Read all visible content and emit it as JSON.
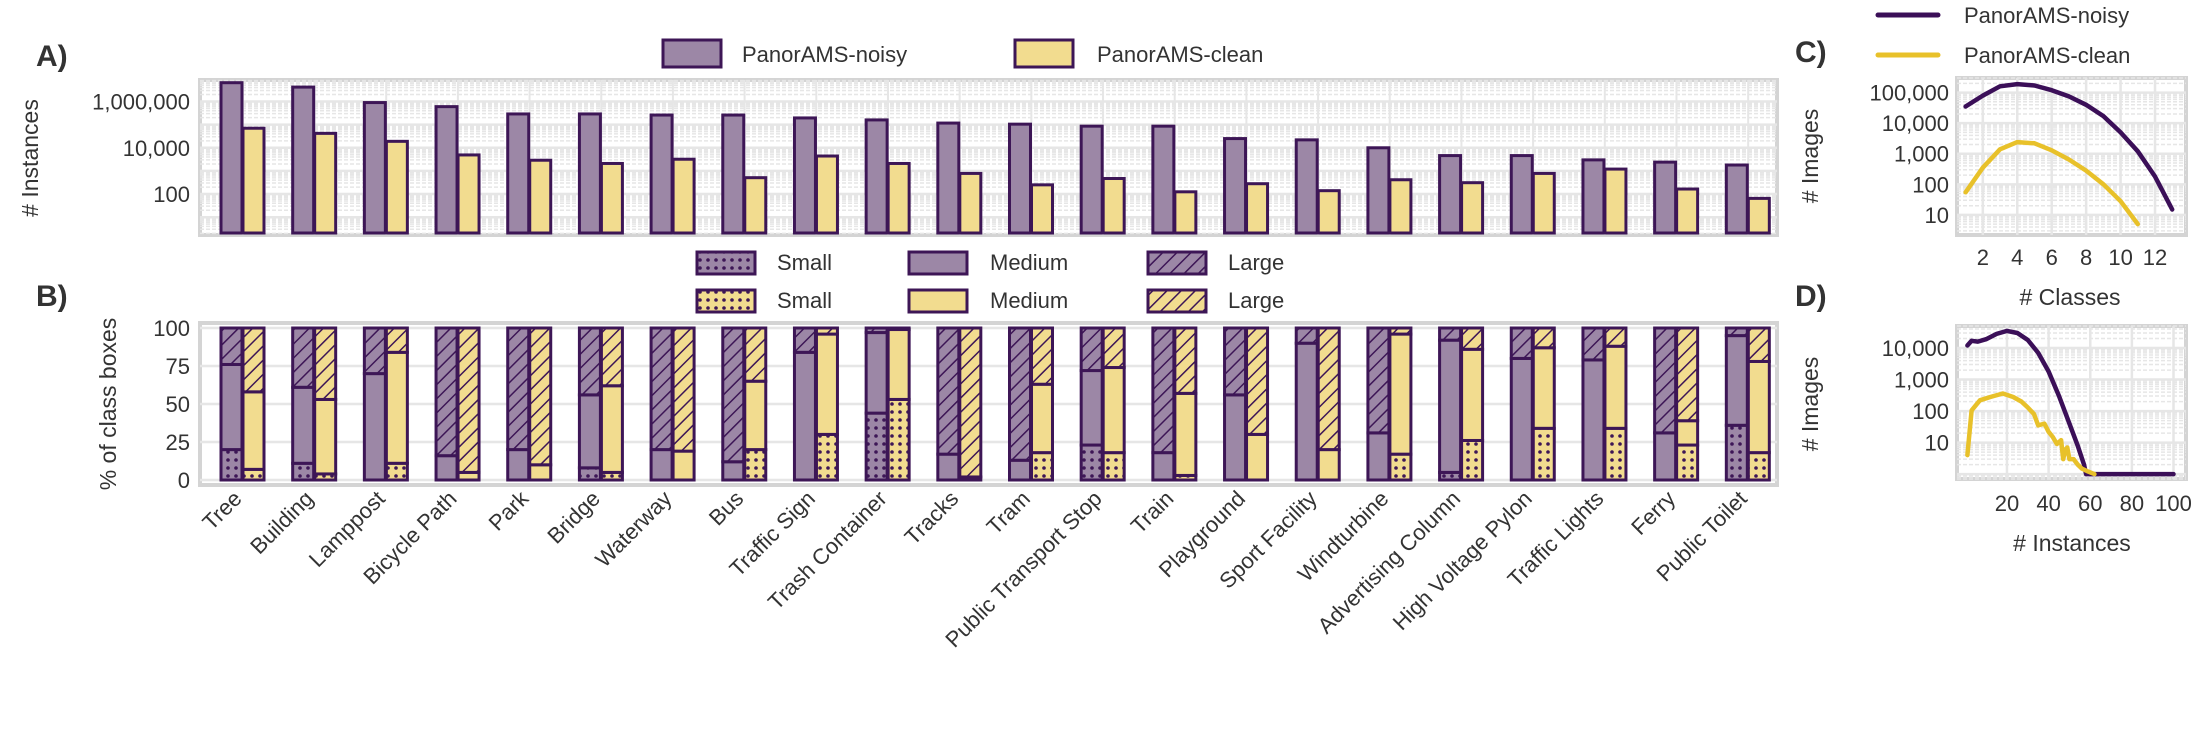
{
  "colors": {
    "noisy_fill": "#9c87a6",
    "noisy_edge": "#3d1656",
    "clean_fill": "#f2dc8f",
    "noisy_line": "#3b0f58",
    "clean_line": "#e8c12a",
    "grid": "#e6e6e6",
    "frame": "#d4d4d4"
  },
  "chart_data": [
    {
      "panel": "A)",
      "type": "bar",
      "ylabel": "# Instances",
      "yscale": "log",
      "yticks": [
        {
          "v": 100,
          "label": "100"
        },
        {
          "v": 10000,
          "label": "10,000"
        },
        {
          "v": 1000000,
          "label": "1,000,000"
        }
      ],
      "ylim": [
        1.7,
        8500000
      ],
      "grid": true,
      "legend_position": "top",
      "categories": [
        "Tree",
        "Building",
        "Lamppost",
        "Bicycle Path",
        "Park",
        "Bridge",
        "Waterway",
        "Bus",
        "Traffic Sign",
        "Trash Container",
        "Tracks",
        "Tram",
        "Public Transport Stop",
        "Train",
        "Playground",
        "Sport Facility",
        "Windturbine",
        "Advertising Column",
        "High Voltage Pylon",
        "Traffic Lights",
        "Ferry",
        "Public Toilet"
      ],
      "series": [
        {
          "name": "PanorAMS-noisy",
          "values": [
            6500000,
            4200000,
            900000,
            600000,
            290000,
            290000,
            260000,
            260000,
            195000,
            160000,
            117000,
            105000,
            86000,
            86000,
            25000,
            22000,
            10000,
            4600,
            4600,
            3000,
            2400,
            1800
          ]
        },
        {
          "name": "PanorAMS-clean",
          "values": [
            70000,
            42000,
            19000,
            4900,
            2900,
            2100,
            3200,
            510,
            4400,
            2100,
            780,
            250,
            470,
            125,
            280,
            140,
            415,
            310,
            780,
            1200,
            165,
            65
          ]
        }
      ]
    },
    {
      "panel": "B)",
      "type": "bar",
      "stacked": true,
      "ylabel": "% of class boxes",
      "ylim": [
        0,
        100
      ],
      "yticks": [
        0,
        25,
        50,
        75,
        100
      ],
      "grid": true,
      "legend": [
        "Small",
        "Medium",
        "Large",
        "Small",
        "Medium",
        "Large"
      ],
      "series": [
        {
          "dataset": "PanorAMS-noisy",
          "small": [
            20,
            11,
            0,
            0,
            0,
            8,
            0,
            0,
            0,
            44,
            0,
            0,
            23,
            0,
            0,
            0,
            0,
            5,
            0,
            0,
            0,
            36
          ],
          "medium": [
            56,
            50,
            70,
            16,
            20,
            48,
            20,
            12,
            84,
            53,
            17,
            13,
            49,
            18,
            56,
            90,
            31,
            87,
            80,
            79,
            31,
            59
          ],
          "large": [
            24,
            39,
            30,
            84,
            80,
            44,
            80,
            88,
            16,
            3,
            83,
            87,
            28,
            82,
            44,
            10,
            69,
            8,
            20,
            21,
            69,
            5
          ]
        },
        {
          "dataset": "PanorAMS-clean",
          "small": [
            7,
            4,
            11,
            0,
            0,
            5,
            0,
            20,
            30,
            53,
            0,
            18,
            18,
            3,
            0,
            0,
            17,
            26,
            34,
            34,
            23,
            18
          ],
          "medium": [
            51,
            49,
            73,
            5,
            10,
            57,
            19,
            45,
            66,
            46,
            2,
            45,
            56,
            54,
            30,
            20,
            79,
            60,
            53,
            54,
            16,
            60
          ],
          "large": [
            42,
            47,
            16,
            95,
            90,
            38,
            81,
            35,
            4,
            1,
            98,
            37,
            26,
            43,
            70,
            80,
            4,
            14,
            13,
            12,
            61,
            22
          ]
        }
      ]
    },
    {
      "panel": "C)",
      "type": "line",
      "xlabel": "# Classes",
      "ylabel": "# Images",
      "yscale": "log",
      "xticks": [
        2,
        4,
        6,
        8,
        10,
        12
      ],
      "yticks": [
        {
          "v": 10,
          "label": "10"
        },
        {
          "v": 100,
          "label": "100"
        },
        {
          "v": 1000,
          "label": "1,000"
        },
        {
          "v": 10000,
          "label": "10,000"
        },
        {
          "v": 100000,
          "label": "100,000"
        }
      ],
      "xlim": [
        0.5,
        13.8
      ],
      "ylim": [
        2.2,
        300000
      ],
      "legend_position": "top",
      "series": [
        {
          "name": "PanorAMS-noisy",
          "x": [
            1,
            2,
            3,
            4,
            5,
            6,
            7,
            8,
            9,
            10,
            11,
            12,
            13
          ],
          "y": [
            35000,
            80000,
            160000,
            190000,
            170000,
            120000,
            75000,
            40000,
            17000,
            5000,
            1200,
            180,
            15
          ]
        },
        {
          "name": "PanorAMS-clean",
          "x": [
            1,
            2,
            3,
            4,
            5,
            6,
            7,
            8,
            9,
            10,
            11
          ],
          "y": [
            55,
            350,
            1400,
            2400,
            2200,
            1300,
            650,
            280,
            100,
            28,
            5
          ]
        }
      ]
    },
    {
      "panel": "D)",
      "type": "line",
      "xlabel": "# Instances",
      "ylabel": "# Images",
      "yscale": "log",
      "xticks": [
        20,
        40,
        60,
        80,
        100
      ],
      "yticks": [
        {
          "v": 10,
          "label": "10"
        },
        {
          "v": 100,
          "label": "100"
        },
        {
          "v": 1000,
          "label": "1,000"
        },
        {
          "v": 10000,
          "label": "10,000"
        }
      ],
      "xlim": [
        -4,
        106
      ],
      "ylim": [
        0.7,
        50000
      ],
      "series": [
        {
          "name": "PanorAMS-noisy",
          "x": [
            1,
            3,
            6,
            10,
            15,
            20,
            25,
            30,
            35,
            40,
            45,
            50,
            54,
            57,
            58,
            100
          ],
          "y": [
            12000,
            17000,
            16000,
            19000,
            28000,
            35000,
            30000,
            18000,
            7000,
            1800,
            300,
            40,
            8,
            2,
            1,
            1
          ]
        },
        {
          "name": "PanorAMS-clean",
          "x": [
            1,
            3,
            7,
            12,
            18,
            23,
            27,
            30,
            33,
            35,
            38,
            40,
            42,
            44,
            46,
            47,
            48,
            49,
            50,
            52,
            54,
            56,
            59,
            62
          ],
          "y": [
            4,
            105,
            220,
            280,
            360,
            280,
            200,
            130,
            80,
            35,
            40,
            22,
            15,
            9,
            12,
            3,
            6,
            7,
            3,
            3,
            2,
            1.5,
            1.2,
            1
          ]
        }
      ]
    }
  ]
}
